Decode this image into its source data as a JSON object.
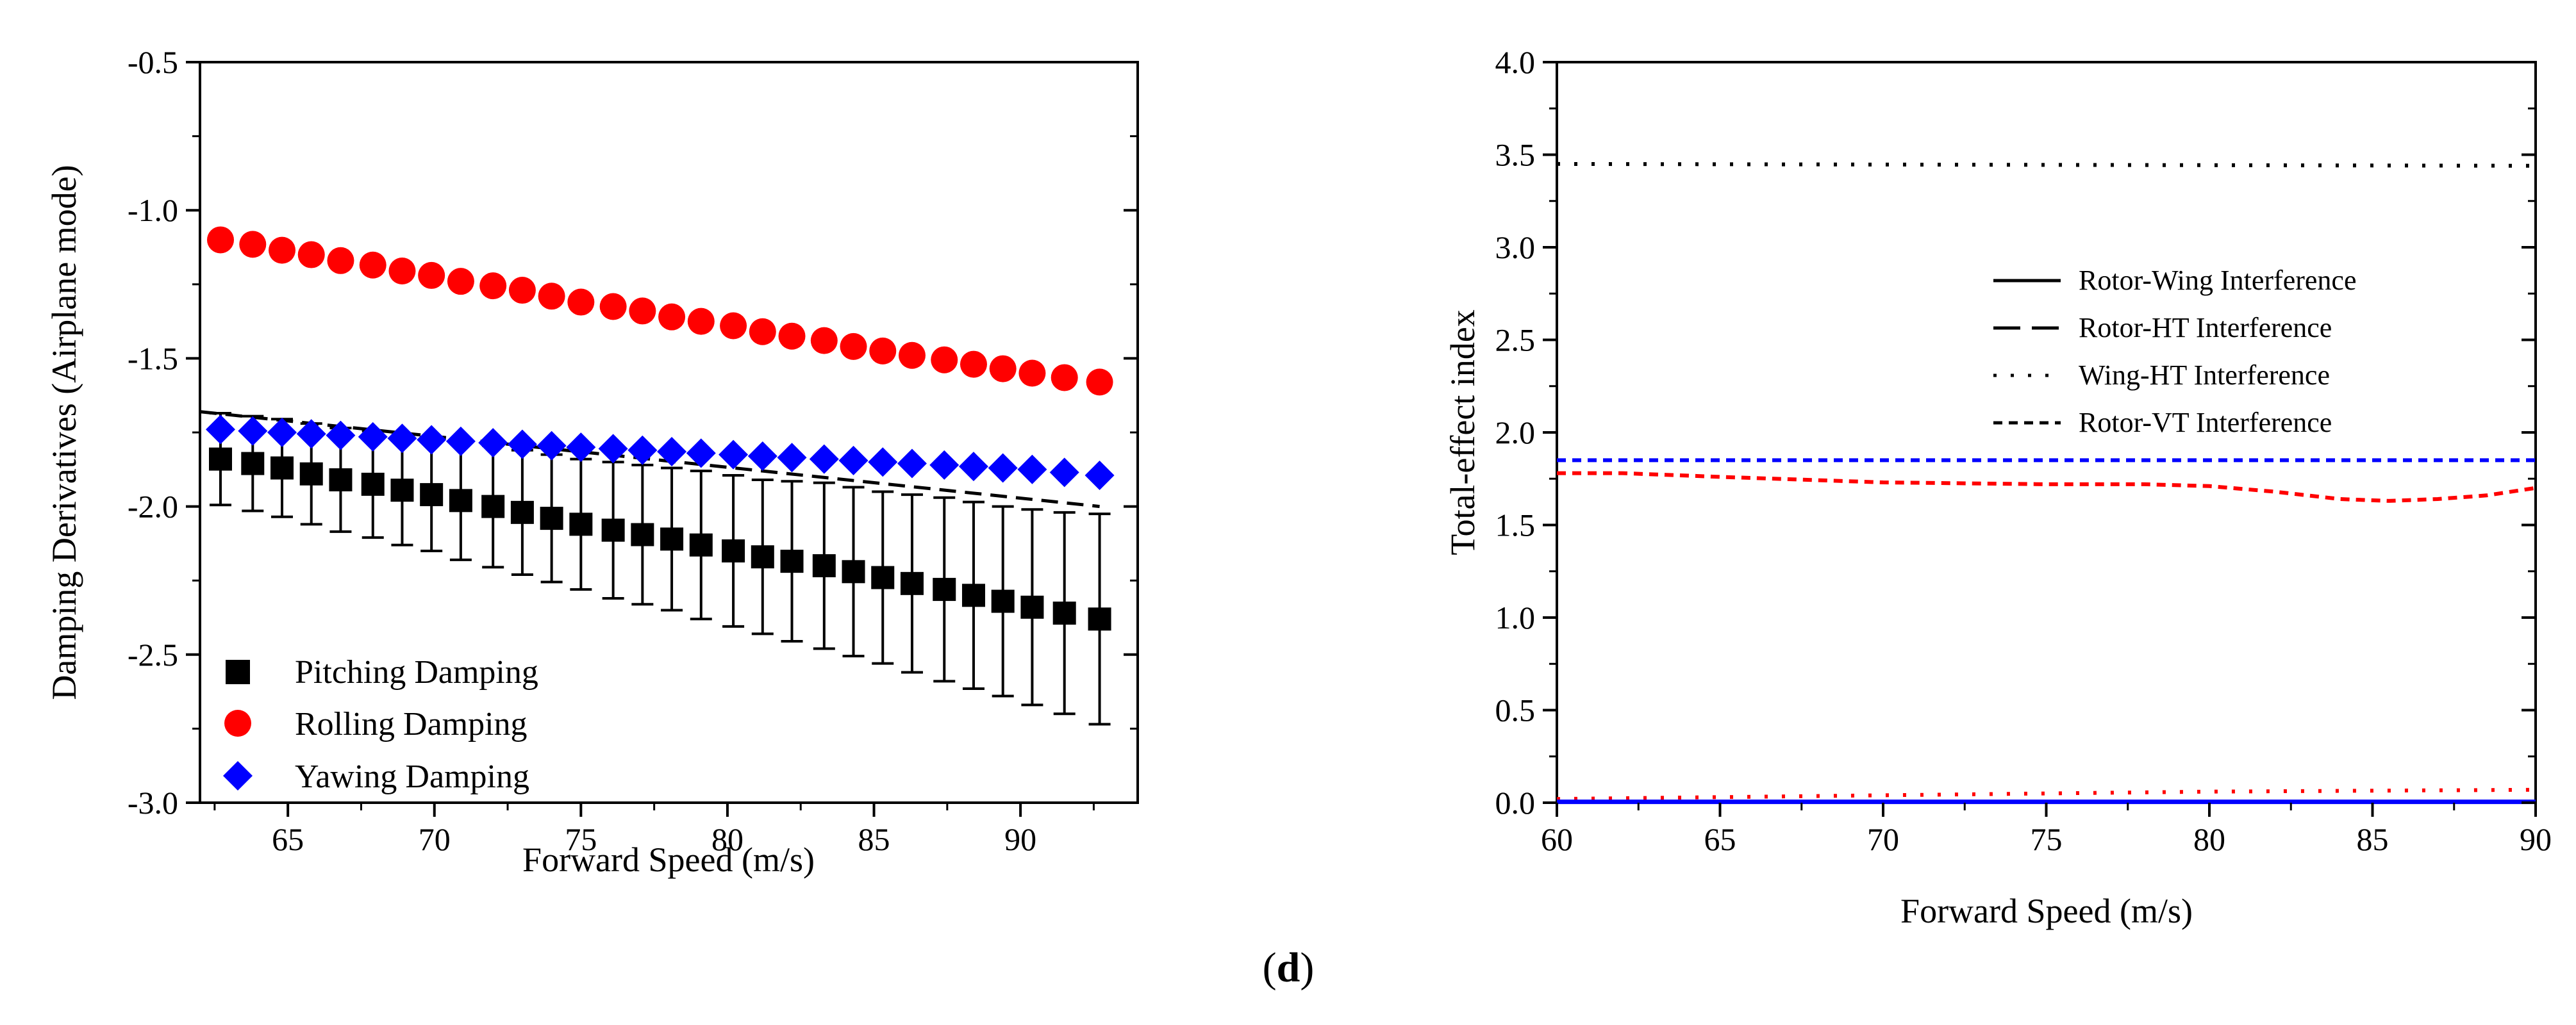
{
  "panel_label_open": "(",
  "panel_label_letter": "d",
  "panel_label_close": ")",
  "chart_data": [
    {
      "type": "scatter",
      "xlabel": "Forward Speed (m/s)",
      "ylabel": "Damping Derivatives (Airplane mode)",
      "xlim": [
        62,
        94
      ],
      "ylim": [
        -3.0,
        -0.5
      ],
      "xticks": [
        65,
        70,
        75,
        80,
        85,
        90
      ],
      "yticks": [
        -3.0,
        -2.5,
        -2.0,
        -1.5,
        -1.0,
        -0.5
      ],
      "xtick_labels": [
        "65",
        "70",
        "75",
        "80",
        "85",
        "90"
      ],
      "ytick_labels": [
        "-3.0",
        "-2.5",
        "-2.0",
        "-1.5",
        "-1.0",
        "-0.5"
      ],
      "legend_position": "bottom-left",
      "grid": false,
      "x": [
        62.7,
        63.8,
        64.8,
        65.8,
        66.8,
        67.9,
        68.9,
        69.9,
        70.9,
        72.0,
        73.0,
        74.0,
        75.0,
        76.1,
        77.1,
        78.1,
        79.1,
        80.2,
        81.2,
        82.2,
        83.3,
        84.3,
        85.3,
        86.3,
        87.4,
        88.4,
        89.4,
        90.4,
        91.5,
        92.7
      ],
      "series": [
        {
          "name": "Pitching Damping",
          "marker": "square",
          "color": "#000000",
          "values": [
            -1.84,
            -1.855,
            -1.87,
            -1.89,
            -1.91,
            -1.925,
            -1.945,
            -1.96,
            -1.98,
            -2.0,
            -2.02,
            -2.04,
            -2.06,
            -2.08,
            -2.095,
            -2.11,
            -2.13,
            -2.15,
            -2.17,
            -2.185,
            -2.2,
            -2.22,
            -2.24,
            -2.26,
            -2.28,
            -2.3,
            -2.32,
            -2.34,
            -2.36,
            -2.38
          ],
          "error": [
            0.155,
            0.16,
            0.165,
            0.17,
            0.175,
            0.18,
            0.185,
            0.19,
            0.2,
            0.205,
            0.21,
            0.215,
            0.22,
            0.23,
            0.235,
            0.24,
            0.25,
            0.255,
            0.26,
            0.27,
            0.28,
            0.285,
            0.29,
            0.3,
            0.31,
            0.315,
            0.32,
            0.33,
            0.34,
            0.355
          ]
        },
        {
          "name": "Rolling Damping",
          "marker": "circle",
          "color": "#ff0000",
          "values": [
            -1.1,
            -1.115,
            -1.135,
            -1.15,
            -1.17,
            -1.185,
            -1.205,
            -1.22,
            -1.24,
            -1.255,
            -1.27,
            -1.29,
            -1.31,
            -1.325,
            -1.34,
            -1.36,
            -1.375,
            -1.39,
            -1.41,
            -1.425,
            -1.44,
            -1.46,
            -1.475,
            -1.49,
            -1.505,
            -1.52,
            -1.535,
            -1.55,
            -1.565,
            -1.58
          ]
        },
        {
          "name": "Yawing Damping",
          "marker": "diamond",
          "color": "#0000ff",
          "values": [
            -1.74,
            -1.745,
            -1.75,
            -1.755,
            -1.76,
            -1.765,
            -1.77,
            -1.775,
            -1.78,
            -1.785,
            -1.79,
            -1.795,
            -1.8,
            -1.805,
            -1.81,
            -1.815,
            -1.82,
            -1.825,
            -1.83,
            -1.835,
            -1.84,
            -1.845,
            -1.85,
            -1.855,
            -1.86,
            -1.865,
            -1.87,
            -1.875,
            -1.885,
            -1.895
          ]
        }
      ],
      "extra_line": {
        "style": "dashed",
        "color": "#000000",
        "x": [
          62.0,
          92.7
        ],
        "y": [
          -1.68,
          -2.0
        ]
      }
    },
    {
      "type": "line",
      "xlabel": "Forward Speed (m/s)",
      "ylabel": "Total-effect index",
      "xlim": [
        60,
        90
      ],
      "ylim": [
        0.0,
        4.0
      ],
      "xticks": [
        60,
        65,
        70,
        75,
        80,
        85,
        90
      ],
      "yticks": [
        0.0,
        0.5,
        1.0,
        1.5,
        2.0,
        2.5,
        3.0,
        3.5,
        4.0
      ],
      "xtick_labels": [
        "60",
        "65",
        "70",
        "75",
        "80",
        "85",
        "90"
      ],
      "ytick_labels": [
        "0.0",
        "0.5",
        "1.0",
        "1.5",
        "2.0",
        "2.5",
        "3.0",
        "3.5",
        "4.0"
      ],
      "legend_position": "right",
      "grid": false,
      "legend": [
        {
          "name": "Rotor-Wing Interference",
          "style": "solid"
        },
        {
          "name": "Rotor-HT Interference",
          "style": "longdash"
        },
        {
          "name": "Wing-HT Interference",
          "style": "dotted"
        },
        {
          "name": "Rotor-VT Interference",
          "style": "shortdash"
        }
      ],
      "lines": [
        {
          "style": "dotted",
          "color": "#000000",
          "x": [
            60,
            90
          ],
          "y": [
            3.45,
            3.44
          ]
        },
        {
          "style": "shortdash",
          "color": "#0000ff",
          "x": [
            60,
            90
          ],
          "y": [
            1.85,
            1.85
          ]
        },
        {
          "style": "shortdash",
          "color": "#ff0000",
          "x": [
            60,
            62,
            65,
            70,
            75,
            78,
            80,
            82,
            84,
            85.5,
            87,
            88.5,
            90
          ],
          "y": [
            1.78,
            1.78,
            1.76,
            1.73,
            1.72,
            1.72,
            1.71,
            1.68,
            1.64,
            1.63,
            1.64,
            1.66,
            1.7
          ]
        },
        {
          "style": "dotted",
          "color": "#ff0000",
          "x": [
            60,
            70,
            80,
            90
          ],
          "y": [
            0.02,
            0.04,
            0.06,
            0.07
          ]
        },
        {
          "style": "solid",
          "color": "#0000ff",
          "x": [
            60,
            90
          ],
          "y": [
            0.005,
            0.005
          ]
        }
      ]
    }
  ]
}
